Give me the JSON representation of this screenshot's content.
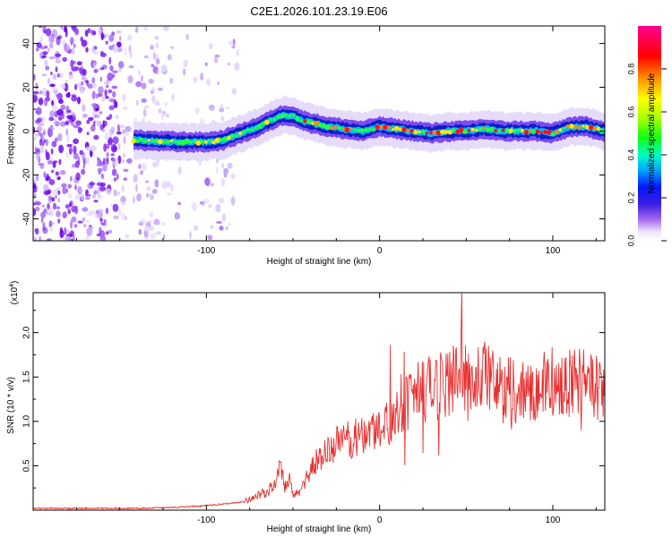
{
  "chart_data": [
    {
      "type": "heatmap",
      "title": "C2E1.2026.101.23.19.E06",
      "xlabel": "Height of straight line (km)",
      "ylabel": "Frequency (Hz)",
      "xlim": [
        -200,
        130
      ],
      "ylim": [
        -50,
        48
      ],
      "xticks": [
        -100,
        0,
        100
      ],
      "yticks": [
        -40,
        -20,
        0,
        20,
        40
      ],
      "ridge": {
        "x": [
          -142,
          -130,
          -120,
          -110,
          -100,
          -90,
          -80,
          -70,
          -60,
          -55,
          -50,
          -45,
          -40,
          -35,
          -30,
          -20,
          -10,
          0,
          10,
          20,
          30,
          40,
          50,
          60,
          70,
          80,
          90,
          100,
          110,
          120,
          130
        ],
        "frequency": [
          -4,
          -4.5,
          -4.8,
          -5,
          -5,
          -4,
          -1,
          2,
          6,
          7.5,
          7,
          5,
          4,
          3,
          2,
          1,
          0,
          2,
          1,
          0,
          -1,
          0,
          0,
          1,
          0,
          0,
          0,
          -1,
          2,
          2,
          0
        ]
      },
      "colorbar": {
        "label": "Normalized spectral amplitude",
        "range": [
          0,
          1
        ],
        "ticks": [
          "0.0",
          "0.2",
          "0.4",
          "0.6",
          "0.8"
        ]
      }
    },
    {
      "type": "line",
      "title": "",
      "xlabel": "Height of straight line (km)",
      "ylabel": "SNR (10 * v/v)",
      "exponent_label": "(x10",
      "exponent_power": "4",
      "exponent_close": ")",
      "xlim": [
        -200,
        130
      ],
      "ylim": [
        0,
        2.45
      ],
      "xticks": [
        -100,
        0,
        100
      ],
      "yticks": [
        "0.5",
        "1.0",
        "1.5",
        "2.0"
      ],
      "color": "#e8302f",
      "series": [
        {
          "name": "SNR",
          "x": [
            -200,
            -180,
            -160,
            -140,
            -120,
            -100,
            -90,
            -80,
            -75,
            -70,
            -65,
            -60,
            -57,
            -55,
            -52,
            -50,
            -45,
            -40,
            -35,
            -30,
            -25,
            -20,
            -15,
            -10,
            -5,
            0,
            5,
            10,
            15,
            20,
            25,
            30,
            35,
            40,
            45,
            50,
            55,
            60,
            65,
            70,
            75,
            80,
            85,
            90,
            95,
            100,
            105,
            110,
            115,
            120,
            125,
            130
          ],
          "values": [
            0.02,
            0.02,
            0.02,
            0.02,
            0.03,
            0.05,
            0.07,
            0.09,
            0.12,
            0.18,
            0.2,
            0.3,
            0.5,
            0.25,
            0.35,
            0.15,
            0.25,
            0.45,
            0.6,
            0.65,
            0.75,
            0.78,
            0.8,
            0.85,
            0.9,
            0.92,
            1.02,
            1.1,
            1.18,
            1.28,
            1.35,
            1.38,
            1.4,
            1.45,
            1.5,
            1.5,
            1.52,
            1.55,
            1.45,
            1.4,
            1.35,
            1.35,
            1.35,
            1.38,
            1.4,
            1.45,
            1.4,
            1.42,
            1.45,
            1.4,
            1.4,
            1.42
          ]
        }
      ]
    }
  ]
}
